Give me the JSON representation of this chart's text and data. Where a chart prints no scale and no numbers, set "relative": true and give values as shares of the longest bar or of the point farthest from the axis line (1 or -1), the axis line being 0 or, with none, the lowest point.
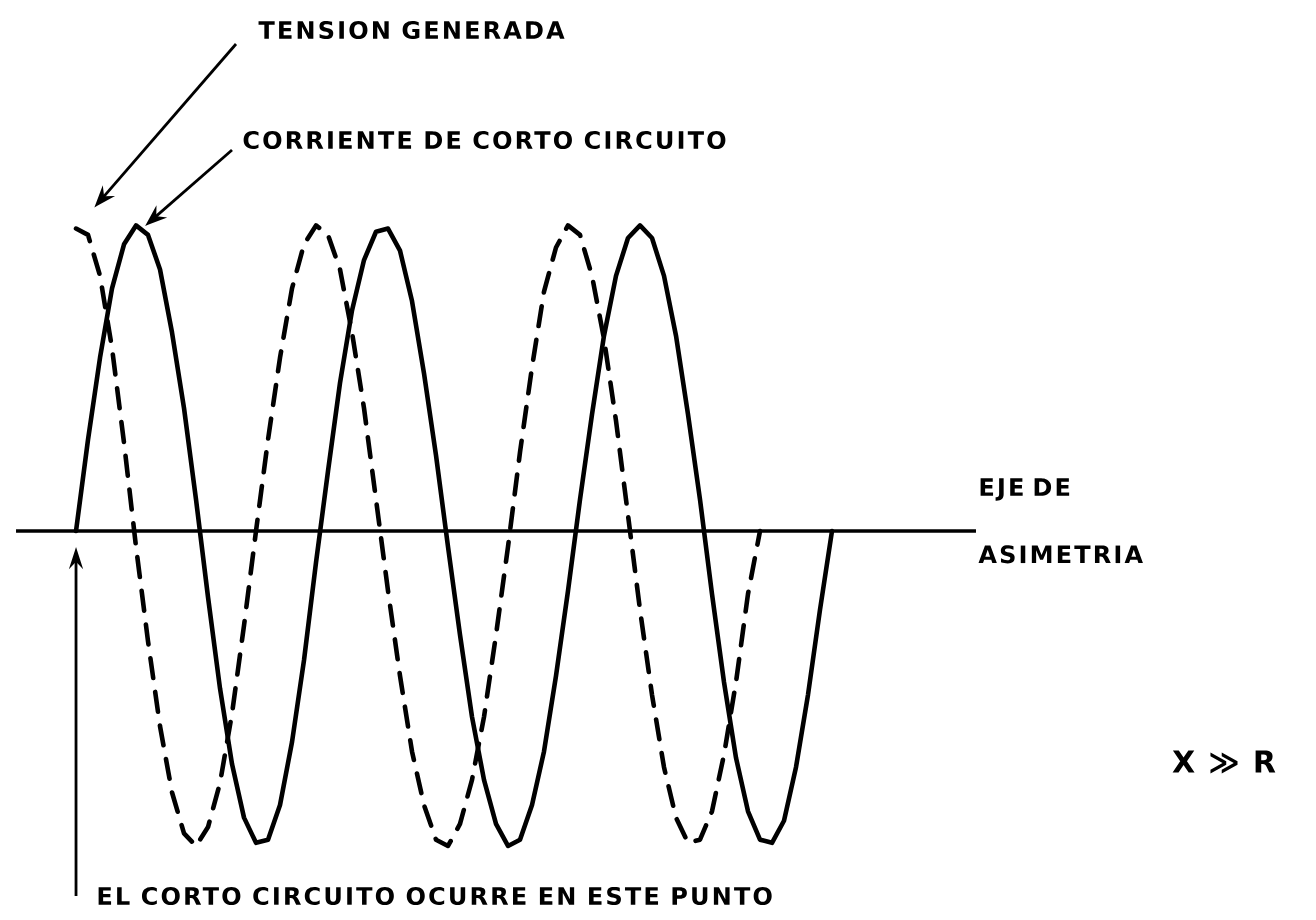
{
  "chart_data": {
    "type": "line",
    "relative": true,
    "categories": [
      null,
      null,
      null,
      null,
      null,
      null,
      null,
      null,
      null,
      null,
      null,
      null,
      null,
      null,
      null,
      null,
      null,
      null,
      null,
      null,
      null,
      null,
      null,
      null,
      null,
      null,
      null,
      null,
      null,
      null,
      null,
      null,
      null,
      null,
      null,
      null,
      null,
      null,
      null,
      null,
      null,
      null,
      null,
      null,
      null,
      null,
      null,
      null,
      null,
      null,
      null,
      null,
      null,
      null,
      null,
      null,
      null,
      null,
      null,
      null,
      null,
      null,
      null,
      null,
      null,
      null,
      null,
      null,
      null,
      null,
      null,
      null,
      null,
      null,
      null,
      null,
      null,
      null,
      null,
      null,
      null
    ],
    "series": [
      {
        "color": "#000000",
        "line_style": "dashed",
        "values": [
          null,
          null,
          null,
          null,
          null,
          0.96,
          0.94,
          0.81,
          0.58,
          0.28,
          -0.05,
          -0.35,
          -0.62,
          -0.83,
          -0.96,
          -1.0,
          -0.94,
          -0.8,
          -0.58,
          -0.3,
          0,
          0.29,
          0.55,
          0.77,
          0.91,
          0.97,
          0.94,
          0.83,
          0.63,
          0.39,
          0.1,
          -0.19,
          -0.46,
          -0.7,
          -0.87,
          -0.98,
          -1.0,
          -0.93,
          -0.79,
          -0.59,
          -0.33,
          -0.05,
          0.25,
          0.52,
          0.76,
          0.9,
          0.97,
          0.94,
          0.81,
          0.61,
          0.35,
          0.05,
          -0.25,
          -0.52,
          -0.75,
          -0.91,
          -0.99,
          -0.98,
          -0.89,
          -0.71,
          -0.48,
          -0.2,
          0,
          null,
          null,
          null,
          null,
          null,
          null,
          null,
          null,
          null,
          null,
          null,
          null,
          null,
          null,
          null,
          null,
          null,
          null
        ]
      },
      {
        "color": "#000000",
        "line_style": "solid",
        "values": [
          null,
          null,
          null,
          null,
          null,
          0,
          0.29,
          0.55,
          0.77,
          0.91,
          0.97,
          0.94,
          0.83,
          0.63,
          0.39,
          0.1,
          -0.21,
          -0.5,
          -0.74,
          -0.91,
          -0.99,
          -0.98,
          -0.87,
          -0.67,
          -0.41,
          -0.1,
          0.19,
          0.47,
          0.7,
          0.86,
          0.95,
          0.96,
          0.89,
          0.73,
          0.5,
          0.24,
          -0.05,
          -0.33,
          -0.59,
          -0.79,
          -0.93,
          -1.0,
          -0.98,
          -0.87,
          -0.7,
          -0.46,
          -0.19,
          0.1,
          0.37,
          0.62,
          0.81,
          0.93,
          0.97,
          0.93,
          0.81,
          0.62,
          0.37,
          0.1,
          -0.2,
          -0.48,
          -0.72,
          -0.89,
          -0.98,
          -0.99,
          -0.92,
          -0.75,
          -0.52,
          -0.25,
          0,
          null,
          null,
          null,
          null,
          null,
          null,
          null,
          null,
          null,
          null,
          null,
          null
        ]
      }
    ],
    "annotations": [
      "TENSION GENERADA",
      "CORRIENTE DE CORTO CIRCUITO",
      "EJE DE ASIMETRIA",
      "EL CORTO CIRCUITO OCURRE EN ESTE PUNTO",
      "X ≫ R"
    ]
  }
}
